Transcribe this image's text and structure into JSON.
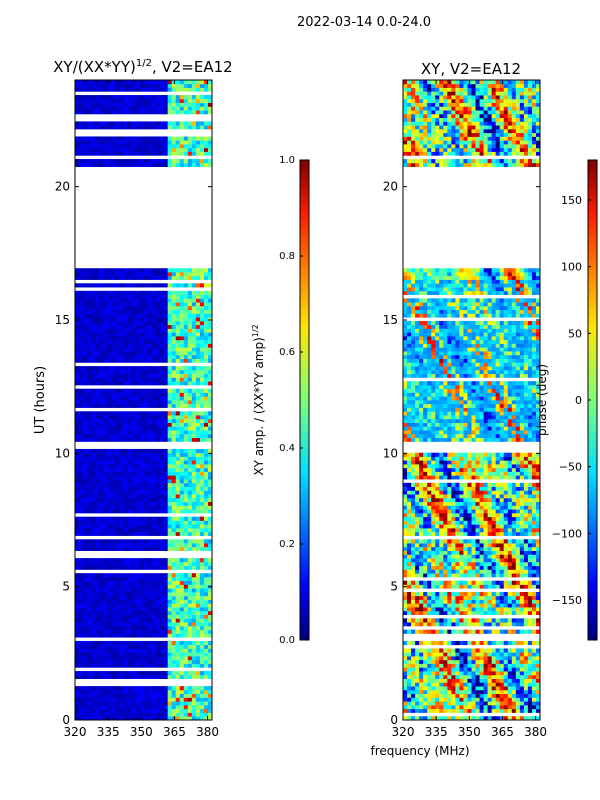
{
  "figure_title": "2022-03-14 0.0-24.0",
  "x_axis_label": "frequency (MHz)",
  "chart_data": [
    {
      "type": "heatmap",
      "title_main": "XY/(XX*YY)",
      "title_sup": "1/2",
      "title_rest": ", V2=EA12",
      "ylabel": "UT (hours)",
      "xlim": [
        320,
        382
      ],
      "ylim": [
        0,
        24
      ],
      "xticks": [
        320,
        335,
        350,
        365,
        380
      ],
      "yticks": [
        0,
        5,
        10,
        15,
        20
      ],
      "missing_bands_ut": [
        [
          17.0,
          20.7
        ],
        [
          10.1,
          10.4
        ],
        [
          22.0,
          22.15
        ],
        [
          21.1,
          21.2
        ],
        [
          15.9,
          16.0
        ],
        [
          6.8,
          6.9
        ],
        [
          1.9,
          2.0
        ]
      ],
      "colorbar": {
        "label_main": "XY amp. / (XX*YY amp)",
        "label_sup": "1/2",
        "min": 0.0,
        "max": 1.0,
        "ticks": [
          "0.0",
          "0.2",
          "0.4",
          "0.6",
          "0.8",
          "1.0"
        ],
        "colormap": "jet"
      }
    },
    {
      "type": "heatmap",
      "title": "XY, V2=EA12",
      "xlim": [
        320,
        382
      ],
      "ylim": [
        0,
        24
      ],
      "xticks": [
        320,
        335,
        350,
        365,
        380
      ],
      "yticks": [
        0,
        5,
        10,
        15,
        20
      ],
      "missing_bands_ut": [
        [
          17.0,
          20.7
        ],
        [
          10.1,
          10.4
        ]
      ],
      "colorbar": {
        "label": "phase (deg)",
        "min": -180,
        "max": 180,
        "ticks": [
          "150",
          "100",
          "50",
          "0",
          "−50",
          "−100",
          "−150"
        ],
        "tick_values": [
          150,
          100,
          50,
          0,
          -50,
          -100,
          -150
        ],
        "colormap": "jet"
      }
    }
  ]
}
